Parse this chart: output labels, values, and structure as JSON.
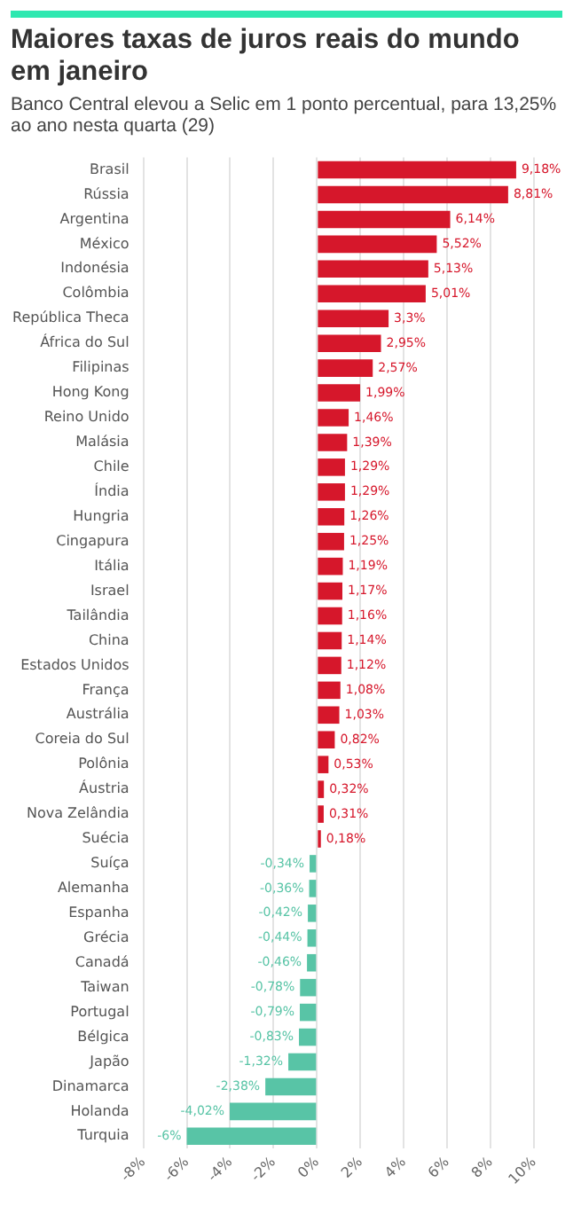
{
  "chart_data": {
    "type": "bar",
    "orientation": "horizontal",
    "title": "Maiores taxas de juros reais do mundo em janeiro",
    "subtitle": "Banco Central elevou a Selic em 1 ponto percentual, para 13,25% ao ano nesta quarta (29)",
    "categories": [
      "Brasil",
      "Rússia",
      "Argentina",
      "México",
      "Indonésia",
      "Colômbia",
      "República Theca",
      "África do Sul",
      "Filipinas",
      "Hong Kong",
      "Reino Unido",
      "Malásia",
      "Chile",
      "Índia",
      "Hungria",
      "Cingapura",
      "Itália",
      "Israel",
      "Tailândia",
      "China",
      "Estados Unidos",
      "França",
      "Austrália",
      "Coreia do Sul",
      "Polônia",
      "Áustria",
      "Nova Zelândia",
      "Suécia",
      "Suíça",
      "Alemanha",
      "Espanha",
      "Grécia",
      "Canadá",
      "Taiwan",
      "Portugal",
      "Bélgica",
      "Japão",
      "Dinamarca",
      "Holanda",
      "Turquia"
    ],
    "values": [
      9.18,
      8.81,
      6.14,
      5.52,
      5.13,
      5.01,
      3.3,
      2.95,
      2.57,
      1.99,
      1.46,
      1.39,
      1.29,
      1.29,
      1.26,
      1.25,
      1.19,
      1.17,
      1.16,
      1.14,
      1.12,
      1.08,
      1.03,
      0.82,
      0.53,
      0.32,
      0.31,
      0.18,
      -0.34,
      -0.36,
      -0.42,
      -0.44,
      -0.46,
      -0.78,
      -0.79,
      -0.83,
      -1.32,
      -2.38,
      -4.02,
      -6
    ],
    "value_labels": [
      "9,18%",
      "8,81%",
      "6,14%",
      "5,52%",
      "5,13%",
      "5,01%",
      "3,3%",
      "2,95%",
      "2,57%",
      "1,99%",
      "1,46%",
      "1,39%",
      "1,29%",
      "1,29%",
      "1,26%",
      "1,25%",
      "1,19%",
      "1,17%",
      "1,16%",
      "1,14%",
      "1,12%",
      "1,08%",
      "1,03%",
      "0,82%",
      "0,53%",
      "0,32%",
      "0,31%",
      "0,18%",
      "-0,34%",
      "-0,36%",
      "-0,42%",
      "-0,44%",
      "-0,46%",
      "-0,78%",
      "-0,79%",
      "-0,83%",
      "-1,32%",
      "-2,38%",
      "-4,02%",
      "-6%"
    ],
    "colors": [
      "#d6172b",
      "#d6172b",
      "#d6172b",
      "#d6172b",
      "#d6172b",
      "#d6172b",
      "#d6172b",
      "#d6172b",
      "#d6172b",
      "#d6172b",
      "#d6172b",
      "#d6172b",
      "#d6172b",
      "#d6172b",
      "#d6172b",
      "#d6172b",
      "#d6172b",
      "#d6172b",
      "#d6172b",
      "#d6172b",
      "#d6172b",
      "#d6172b",
      "#d6172b",
      "#d6172b",
      "#d6172b",
      "#d6172b",
      "#d6172b",
      "#d6172b",
      "#58c4a6",
      "#58c4a6",
      "#58c4a6",
      "#58c4a6",
      "#58c4a6",
      "#58c4a6",
      "#58c4a6",
      "#58c4a6",
      "#58c4a6",
      "#58c4a6",
      "#58c4a6",
      "#58c4a6"
    ],
    "xlim": [
      -8,
      10
    ],
    "xticks": [
      {
        "value": -8,
        "label": "-8%"
      },
      {
        "value": -6,
        "label": "-6%"
      },
      {
        "value": -4,
        "label": "-4%"
      },
      {
        "value": -2,
        "label": "-2%"
      },
      {
        "value": 0,
        "label": "0%"
      },
      {
        "value": 2,
        "label": "2%"
      },
      {
        "value": 4,
        "label": "4%"
      },
      {
        "value": 6,
        "label": "6%"
      },
      {
        "value": 8,
        "label": "8%"
      },
      {
        "value": 10,
        "label": "10%"
      }
    ],
    "grid": "x",
    "legend": false
  }
}
